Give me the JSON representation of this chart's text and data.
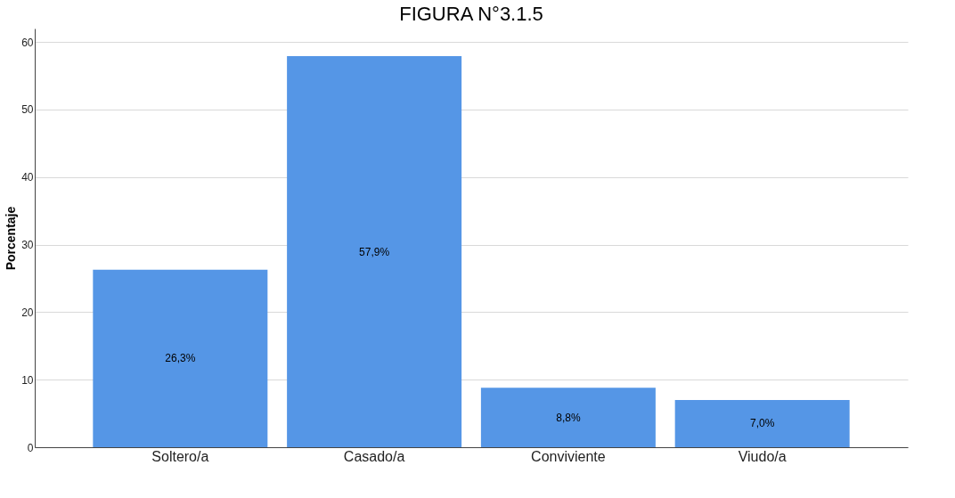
{
  "chart_data": {
    "type": "bar",
    "title": "FIGURA N°3.1.5",
    "ylabel": "Porcentaje",
    "categories": [
      "Soltero/a",
      "Casado/a",
      "Conviviente",
      "Viudo/a"
    ],
    "values": [
      26.3,
      57.9,
      8.8,
      7.0
    ],
    "color": "#5596e6",
    "value_labels": [
      "26,3%",
      "57,9%",
      "8,8%",
      "7,0%"
    ],
    "ylim": [
      0,
      62
    ],
    "yticks": [
      0,
      10,
      20,
      30,
      40,
      50,
      60
    ],
    "grid": "y"
  }
}
